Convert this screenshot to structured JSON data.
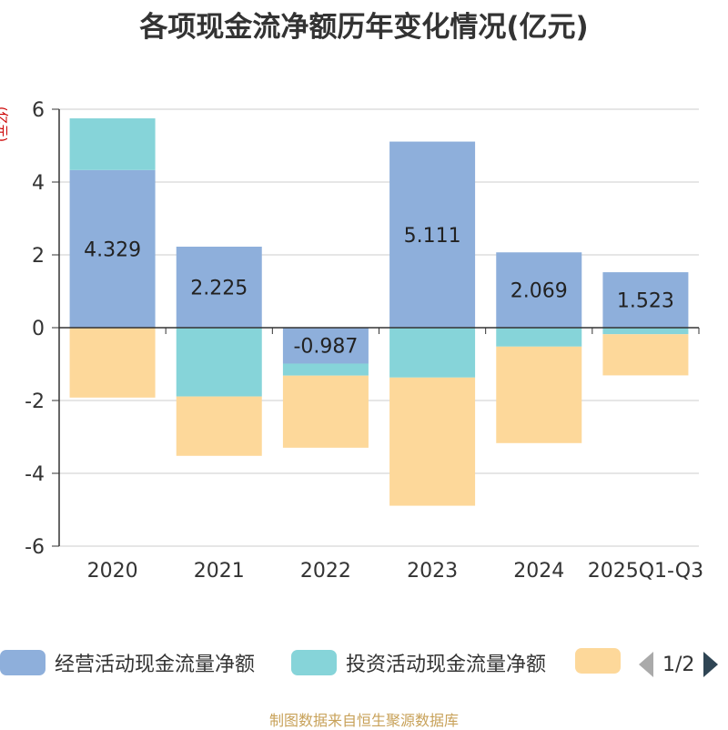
{
  "title": "各项现金流净额历年变化情况(亿元)",
  "unit_label": "(亿元)",
  "source": "制图数据来自恒生聚源数据库",
  "legend": {
    "page": "1/2",
    "items": [
      {
        "label": "经营活动现金流量净额",
        "color": "#8eafdb"
      },
      {
        "label": "投资活动现金流量净额",
        "color": "#86d4d9"
      },
      {
        "label": "",
        "color": "#fdd89a"
      }
    ]
  },
  "chart_data": {
    "type": "bar",
    "stacked": true,
    "title": "各项现金流净额历年变化情况(亿元)",
    "ylabel": "(亿元)",
    "ylim": [
      -6,
      6
    ],
    "yticks": [
      6,
      4,
      2,
      0,
      -2,
      -4,
      -6
    ],
    "categories": [
      "2020",
      "2021",
      "2022",
      "2023",
      "2024",
      "2025Q1-Q3"
    ],
    "series": [
      {
        "name": "经营活动现金流量净额",
        "color": "#8eafdb",
        "values": [
          4.329,
          2.225,
          -0.987,
          5.111,
          2.069,
          1.523
        ],
        "labels": [
          "4.329",
          "2.225",
          "-0.987",
          "5.111",
          "2.069",
          "1.523"
        ]
      },
      {
        "name": "投资活动现金流量净额",
        "color": "#86d4d9",
        "values": [
          1.42,
          -1.89,
          -0.33,
          -1.37,
          -0.52,
          -0.18
        ]
      },
      {
        "name": "",
        "color": "#fdd89a",
        "values": [
          -1.92,
          -1.63,
          -1.98,
          -3.52,
          -2.65,
          -1.13
        ]
      }
    ]
  }
}
